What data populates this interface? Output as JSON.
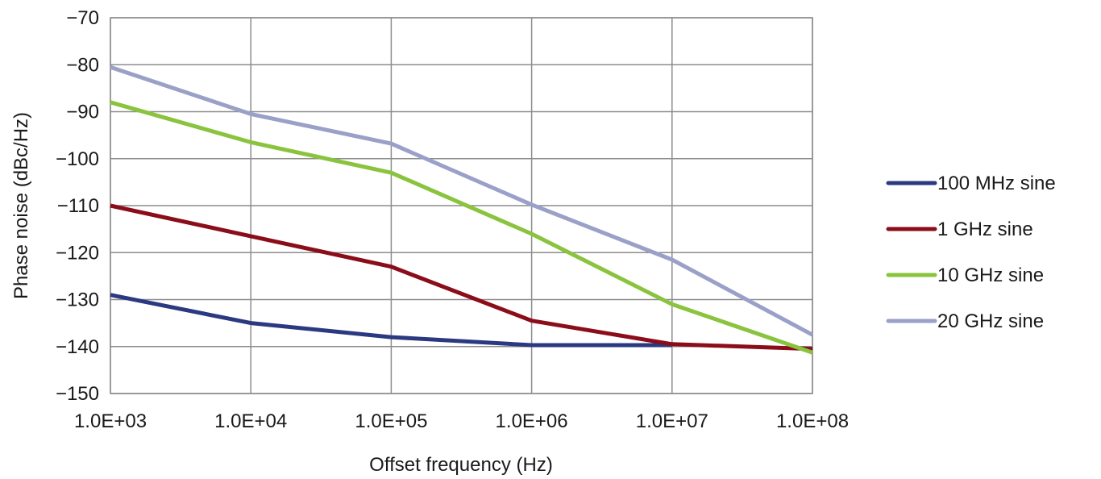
{
  "chart_data": {
    "type": "line",
    "xscale": "log",
    "x": [
      1000,
      10000,
      100000,
      1000000,
      10000000,
      100000000
    ],
    "x_tick_labels": [
      "1.0E+03",
      "1.0E+04",
      "1.0E+05",
      "1.0E+06",
      "1.0E+07",
      "1.0E+08"
    ],
    "ylim": [
      -150,
      -70
    ],
    "y_ticks": [
      -70,
      -80,
      -90,
      -100,
      -110,
      -120,
      -130,
      -140,
      -150
    ],
    "xlabel": "Offset frequency (Hz)",
    "ylabel": "Phase noise (dBc/Hz)",
    "grid": true,
    "legend_position": "right",
    "series": [
      {
        "name": "100 MHz sine",
        "color": "#2b3a80",
        "values": [
          -129,
          -135,
          -138,
          -139.7,
          -139.7,
          null
        ]
      },
      {
        "name": "1 GHz sine",
        "color": "#8b0d1a",
        "values": [
          -110,
          -116.5,
          -123,
          -134.5,
          -139.5,
          -140.5
        ]
      },
      {
        "name": "10 GHz sine",
        "color": "#8ac43f",
        "values": [
          -88,
          -96.5,
          -103,
          -116,
          -131,
          -141.3
        ]
      },
      {
        "name": "20 GHz sine",
        "color": "#9aa0c8",
        "values": [
          -80.5,
          -90.5,
          -96.8,
          -109.8,
          -121.5,
          -137.5
        ]
      }
    ]
  }
}
